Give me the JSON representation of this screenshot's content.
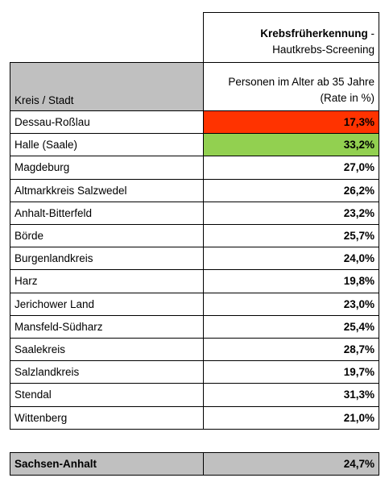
{
  "header": {
    "title": "Krebsfrüherkennung",
    "title_suffix": "-",
    "subtitle": "Hautkrebs-Screening"
  },
  "table": {
    "columns": [
      "Kreis / Stadt",
      "Personen im Alter ab 35 Jahre",
      "(Rate in %)"
    ],
    "rows": [
      {
        "name": "Dessau-Roßlau",
        "value": "17,3%",
        "color": "#ff3300"
      },
      {
        "name": "Halle (Saale)",
        "value": "33,2%",
        "color": "#92d050"
      },
      {
        "name": "Magdeburg",
        "value": "27,0%"
      },
      {
        "name": "Altmarkkreis Salzwedel",
        "value": "26,2%"
      },
      {
        "name": "Anhalt-Bitterfeld",
        "value": "23,2%"
      },
      {
        "name": "Börde",
        "value": "25,7%"
      },
      {
        "name": "Burgenlandkreis",
        "value": "24,0%"
      },
      {
        "name": "Harz",
        "value": "19,8%"
      },
      {
        "name": "Jerichower Land",
        "value": "23,0%"
      },
      {
        "name": "Mansfeld-Südharz",
        "value": "25,4%"
      },
      {
        "name": "Saalekreis",
        "value": "28,7%"
      },
      {
        "name": "Salzlandkreis",
        "value": "19,7%"
      },
      {
        "name": "Stendal",
        "value": "31,3%"
      },
      {
        "name": "Wittenberg",
        "value": "21,0%"
      }
    ],
    "total": {
      "name": "Sachsen-Anhalt",
      "value": "24,7%"
    }
  }
}
